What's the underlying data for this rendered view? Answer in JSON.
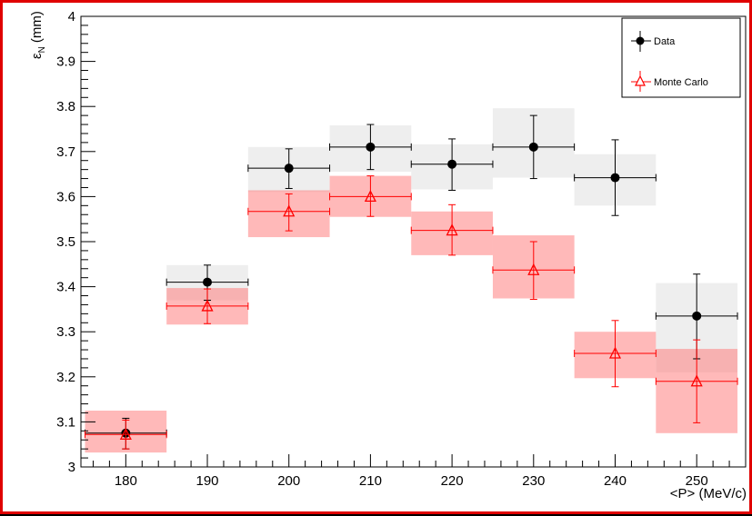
{
  "colors": {
    "frame": "#e00000",
    "data": "#000000",
    "mc": "#ff0000",
    "data_band": "#e0e0e0",
    "mc_band": "#ff8080"
  },
  "chart_data": {
    "type": "scatter",
    "xlabel": "<P> (MeV/c)",
    "ylabel_main": "ε",
    "ylabel_sub": "N",
    "ylabel_unit": "(mm)",
    "xlim": [
      174.5,
      256
    ],
    "ylim": [
      3.0,
      4.0
    ],
    "x_ticks": [
      180,
      190,
      200,
      210,
      220,
      230,
      240,
      250
    ],
    "y_ticks": [
      3,
      3.1,
      3.2,
      3.3,
      3.4,
      3.5,
      3.6,
      3.7,
      3.8,
      3.9,
      4
    ],
    "y_tick_labels": [
      "3",
      "3.1",
      "3.2",
      "3.3",
      "3.4",
      "3.5",
      "3.6",
      "3.7",
      "3.8",
      "3.9",
      "4"
    ],
    "x_bin_halfwidth": 5,
    "legend_position": "top-right",
    "series": [
      {
        "name": "Data",
        "marker": "circle",
        "x": [
          180,
          190,
          200,
          210,
          220,
          230,
          240,
          250
        ],
        "y": [
          3.075,
          3.41,
          3.663,
          3.71,
          3.672,
          3.71,
          3.642,
          3.335
        ],
        "err_low": [
          3.04,
          3.37,
          3.618,
          3.66,
          3.614,
          3.64,
          3.558,
          3.24
        ],
        "err_high": [
          3.108,
          3.448,
          3.706,
          3.76,
          3.728,
          3.78,
          3.726,
          3.428
        ],
        "band_low": [
          3.075,
          3.37,
          3.61,
          3.655,
          3.616,
          3.642,
          3.58,
          3.21
        ],
        "band_high": [
          3.075,
          3.448,
          3.71,
          3.758,
          3.716,
          3.796,
          3.694,
          3.408
        ]
      },
      {
        "name": "Monte Carlo",
        "marker": "open-triangle",
        "x": [
          180,
          190,
          200,
          210,
          220,
          230,
          240,
          250
        ],
        "y": [
          3.072,
          3.357,
          3.567,
          3.6,
          3.525,
          3.437,
          3.252,
          3.19
        ],
        "err_low": [
          3.04,
          3.318,
          3.524,
          3.556,
          3.47,
          3.372,
          3.178,
          3.098
        ],
        "err_high": [
          3.104,
          3.395,
          3.606,
          3.646,
          3.582,
          3.5,
          3.325,
          3.282
        ],
        "band_low": [
          3.032,
          3.316,
          3.51,
          3.555,
          3.47,
          3.374,
          3.197,
          3.075
        ],
        "band_high": [
          3.125,
          3.397,
          3.614,
          3.646,
          3.567,
          3.514,
          3.3,
          3.262
        ]
      }
    ]
  }
}
